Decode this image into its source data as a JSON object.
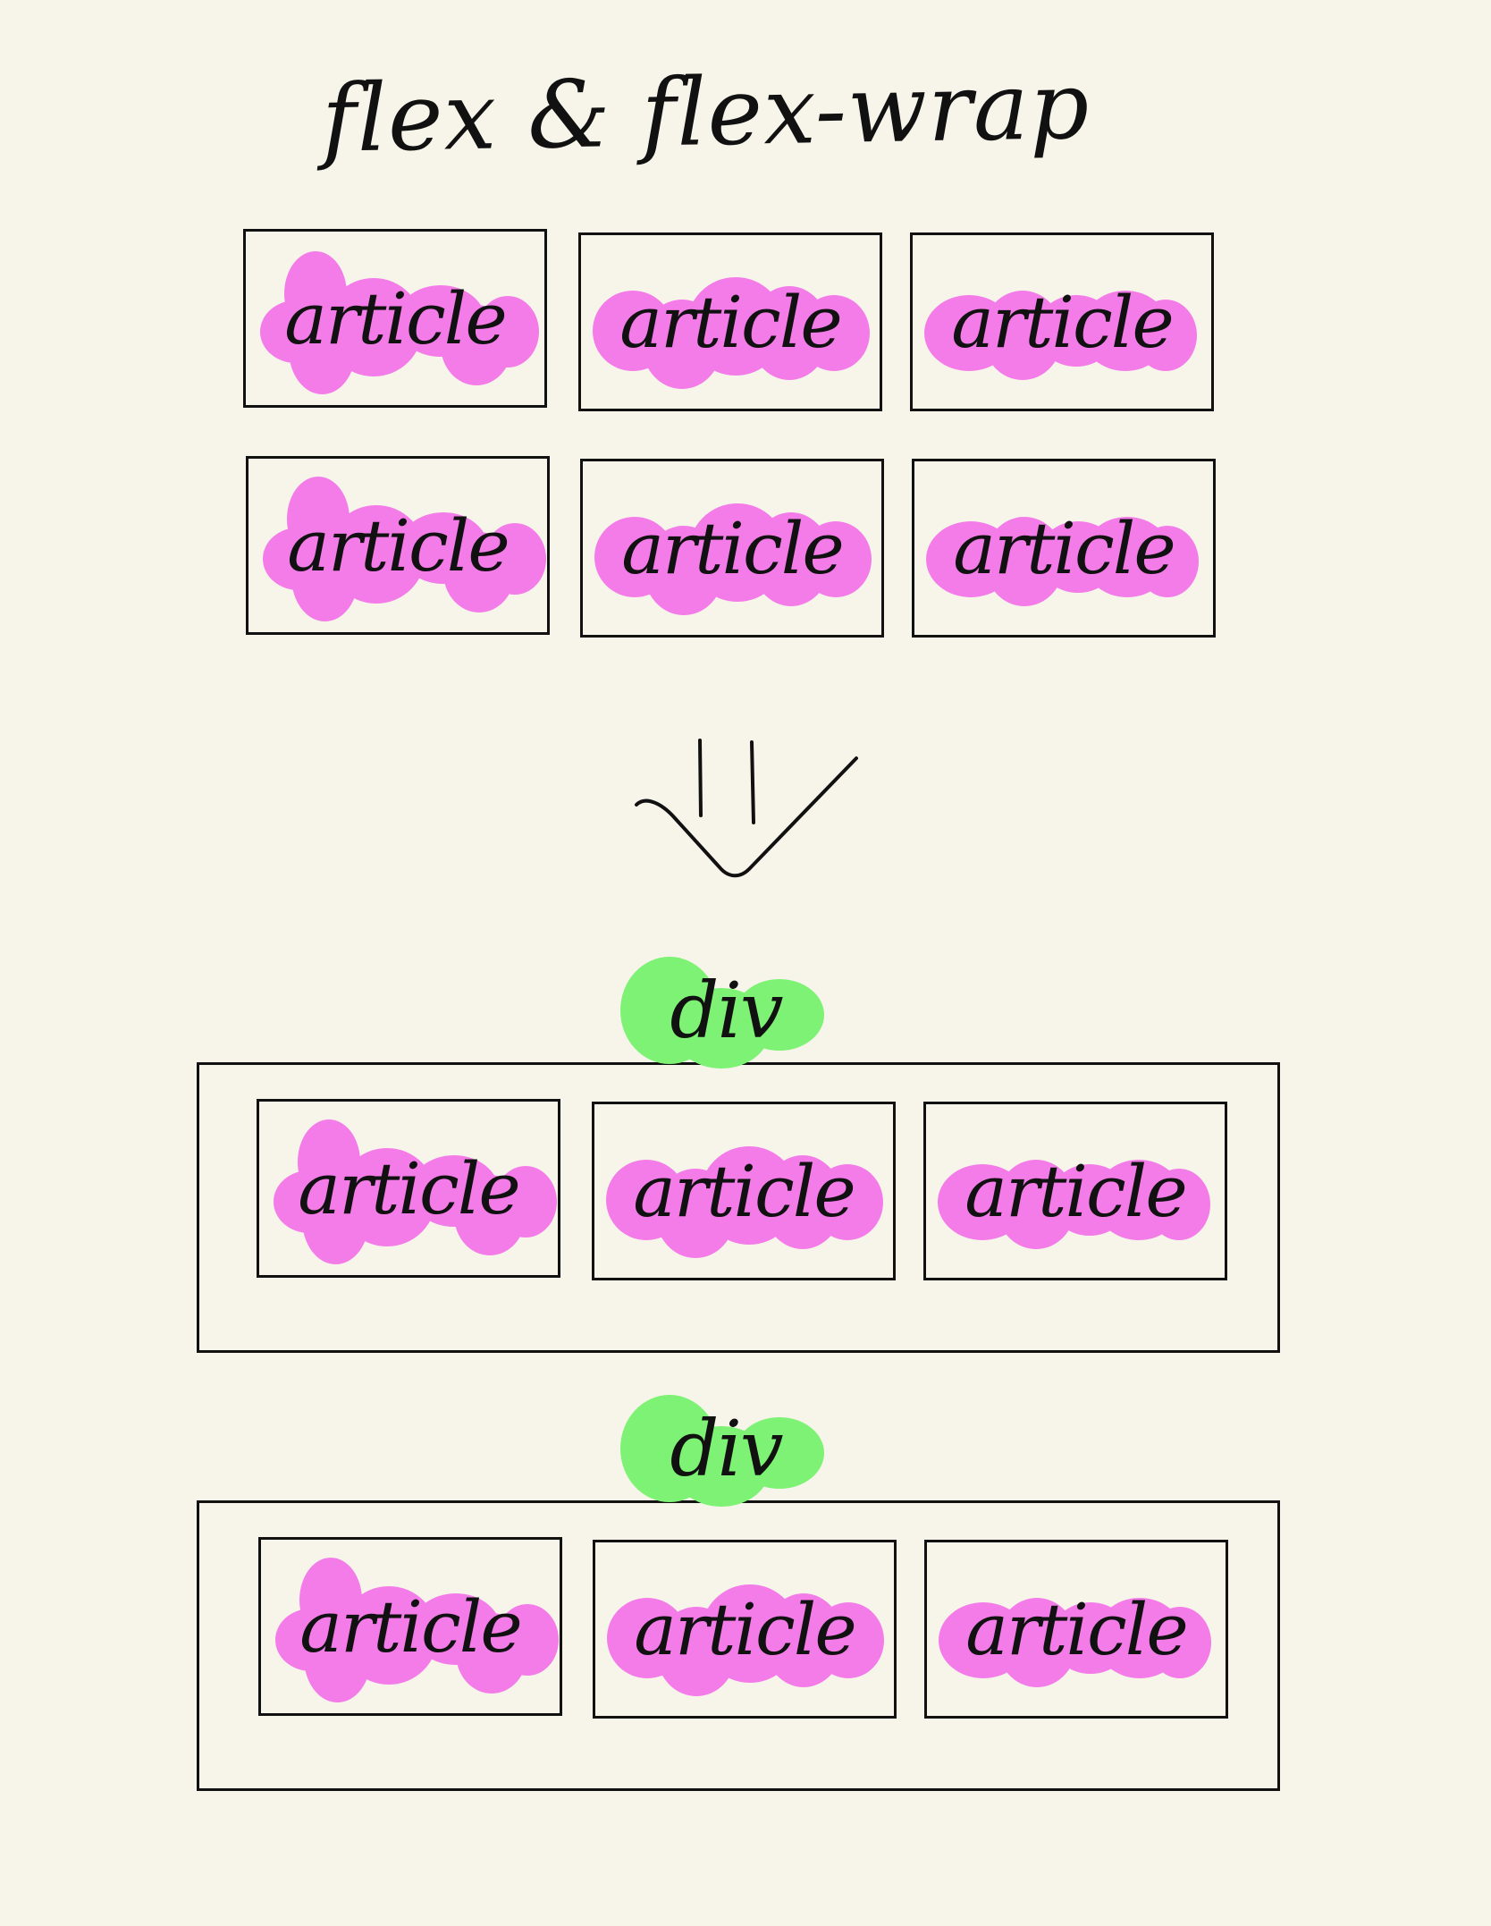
{
  "title": "flex & flex-wrap",
  "colors": {
    "background": "#f7f5ea",
    "article_highlight": "#f47ce8",
    "div_highlight": "#7df274",
    "ink": "#111111"
  },
  "article_label": "article",
  "div_label": "div",
  "arrow_icon": "down-arrow-icon",
  "top_grid": {
    "rows": [
      [
        "article",
        "article",
        "article"
      ],
      [
        "article",
        "article",
        "article"
      ]
    ]
  },
  "containers": [
    {
      "label": "div",
      "items": [
        "article",
        "article",
        "article"
      ]
    },
    {
      "label": "div",
      "items": [
        "article",
        "article",
        "article"
      ]
    }
  ]
}
